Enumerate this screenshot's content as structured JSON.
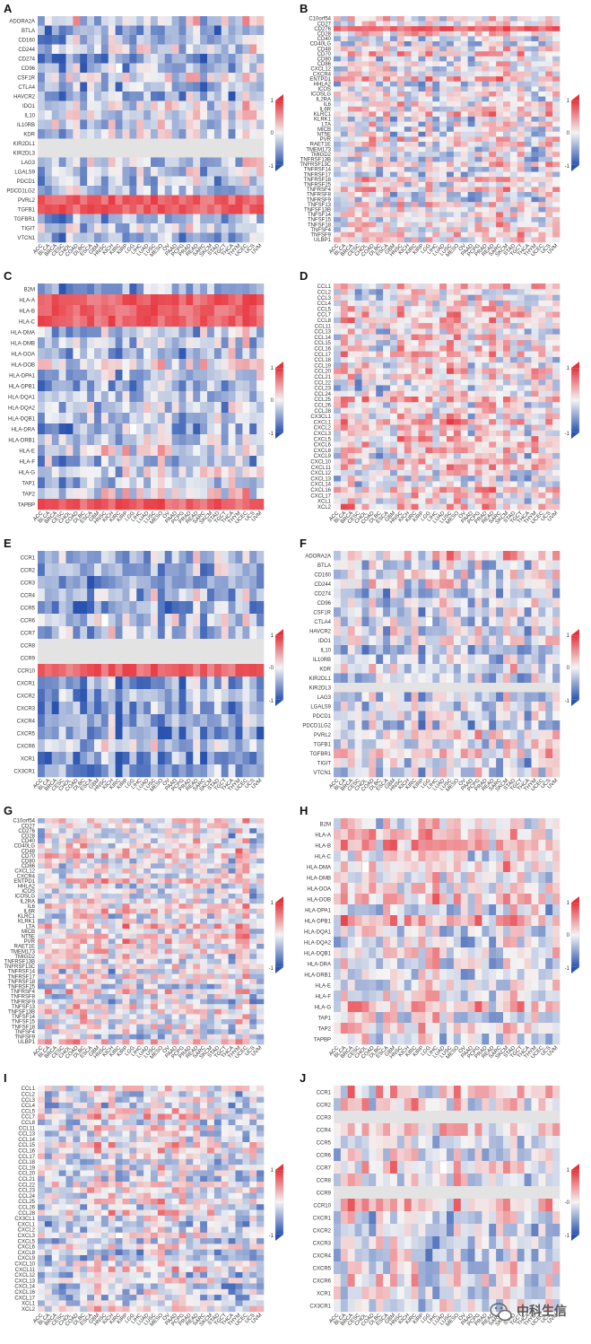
{
  "watermark": {
    "text": "中科生信",
    "icon": "wechat-icon"
  },
  "colorbar": {
    "max_label": "1",
    "mid_label": "0",
    "min_label": "-1",
    "alt_mid_label": "-0",
    "high_color": "#e8313a",
    "low_color": "#2a53b0",
    "mid_color": "#f4f4f4",
    "missing_color": "#e3e3e3"
  },
  "columns": [
    "ACC",
    "BLCA",
    "BRCA",
    "CESC",
    "CHOL",
    "COAD",
    "DLBC",
    "ESCA",
    "GBM",
    "HNSC",
    "KICH",
    "KIRC",
    "KIRP",
    "LGG",
    "LIHC",
    "LUAD",
    "LUSC",
    "MESO",
    "OV",
    "PAAD",
    "PCPG",
    "PRAD",
    "READ",
    "SARC",
    "SKCM",
    "STAD",
    "TGCT",
    "THCA",
    "THYM",
    "UCEC",
    "UCS",
    "UVM"
  ],
  "chart_data": [
    {
      "type": "heatmap",
      "panel": "A",
      "category": "immunoinhibitor",
      "ylim": [
        -1,
        1
      ],
      "colorbar_mid": "0",
      "rows": [
        "ADORA2A",
        "BTLA",
        "CD160",
        "CD244",
        "CD274",
        "CD96",
        "CSF1R",
        "CTLA4",
        "HAVCR2",
        "IDO1",
        "IL10",
        "IL10RB",
        "KDR",
        "KIR2DL1",
        "KIR2DL3",
        "LAG3",
        "LGALS9",
        "PDCD1",
        "PDCD1LG2",
        "PVRL2",
        "TGFB1",
        "TGFBR1",
        "TIGIT",
        "VTCN1"
      ],
      "strong_pos_rows": [
        "PVRL2",
        "TGFB1"
      ],
      "missing_rows": [
        "KIR2DL1",
        "KIR2DL3"
      ],
      "bias": -0.25,
      "seed": 11,
      "missing_cell": [
        5,
        11
      ]
    },
    {
      "type": "heatmap",
      "panel": "B",
      "category": "immunostimulator",
      "ylim": [
        -1,
        1
      ],
      "colorbar_mid": "0",
      "rows": [
        "C10orf54",
        "CD27",
        "CD276",
        "CD28",
        "CD40",
        "CD40LG",
        "CD48",
        "CD70",
        "CD80",
        "CD86",
        "CXCL12",
        "CXCR4",
        "ENTPD1",
        "HHLA2",
        "ICOS",
        "ICOSLG",
        "IL2RA",
        "IL6",
        "IL6R",
        "KLRC1",
        "KLRK1",
        "LTA",
        "MICB",
        "NT5E",
        "PVR",
        "RAET1E",
        "TMEM173",
        "TMIGD2",
        "TNFRSF13B",
        "TNFRSF13C",
        "TNFRSF14",
        "TNFRSF17",
        "TNFRSF18",
        "TNFRSF25",
        "TNFRSF4",
        "TNFRSF8",
        "TNFRSF9",
        "TNFSF13",
        "TNFSF13B",
        "TNFSF14",
        "TNFSF15",
        "TNFSF18",
        "TNFSF4",
        "TNFSF9",
        "ULBP1"
      ],
      "strong_pos_rows": [
        "CD276"
      ],
      "missing_rows": [],
      "bias": 0.05,
      "seed": 23,
      "missing_cell": null
    },
    {
      "type": "heatmap",
      "panel": "C",
      "category": "MHC",
      "ylim": [
        -1,
        1
      ],
      "colorbar_mid": "0",
      "rows": [
        "B2M",
        "HLA-A",
        "HLA-B",
        "HLA-C",
        "HLA-DMA",
        "HLA-DMB",
        "HLA-DOA",
        "HLA-DOB",
        "HLA-DPA1",
        "HLA-DPB1",
        "HLA-DQA1",
        "HLA-DQA2",
        "HLA-DQB1",
        "HLA-DRA",
        "HLA-DRB1",
        "HLA-E",
        "HLA-F",
        "HLA-G",
        "TAP1",
        "TAP2",
        "TAPBP"
      ],
      "strong_pos_rows": [
        "HLA-A",
        "HLA-B",
        "HLA-C",
        "TAPBP"
      ],
      "missing_rows": [],
      "bias": -0.2,
      "seed": 37,
      "missing_cell": [
        13,
        13
      ]
    },
    {
      "type": "heatmap",
      "panel": "D",
      "category": "chemokine",
      "ylim": [
        -1,
        1
      ],
      "colorbar_mid": "",
      "rows": [
        "CCL1",
        "CCL2",
        "CCL3",
        "CCL4",
        "CCL5",
        "CCL7",
        "CCL8",
        "CCL11",
        "CCL13",
        "CCL14",
        "CCL15",
        "CCL16",
        "CCL17",
        "CCL18",
        "CCL19",
        "CCL20",
        "CCL21",
        "CCL22",
        "CCL23",
        "CCL24",
        "CCL25",
        "CCL26",
        "CCL28",
        "CX3CL1",
        "CXCL1",
        "CXCL2",
        "CXCL3",
        "CXCL5",
        "CXCL6",
        "CXCL8",
        "CXCL9",
        "CXCL10",
        "CXCL11",
        "CXCL12",
        "CXCL13",
        "CXCL14",
        "CXCL16",
        "CXCL17",
        "XCL1",
        "XCL2"
      ],
      "strong_pos_rows": [],
      "missing_rows": [],
      "bias": 0.05,
      "seed": 41,
      "missing_cell": null
    },
    {
      "type": "heatmap",
      "panel": "E",
      "category": "receptor",
      "ylim": [
        -1,
        1
      ],
      "colorbar_mid": "-0",
      "rows": [
        "CCR1",
        "CCR2",
        "CCR3",
        "CCR4",
        "CCR5",
        "CCR6",
        "CCR7",
        "CCR8",
        "CCR9",
        "CCR10",
        "CXCR1",
        "CXCR2",
        "CXCR3",
        "CXCR4",
        "CXCR5",
        "CXCR6",
        "XCR1",
        "CX3CR1"
      ],
      "strong_pos_rows": [
        "CCR10"
      ],
      "missing_rows": [
        "CCR8",
        "CCR9"
      ],
      "bias": -0.3,
      "seed": 53,
      "missing_cell": [
        5,
        9
      ]
    },
    {
      "type": "heatmap",
      "panel": "F",
      "category": "immunoinhibitor",
      "ylim": [
        -1,
        1
      ],
      "colorbar_mid": "0",
      "rows": [
        "ADORA2A",
        "BTLA",
        "CD160",
        "CD244",
        "CD274",
        "CD96",
        "CSF1R",
        "CTLA4",
        "HAVCR2",
        "IDO1",
        "IL10",
        "IL10RB",
        "KDR",
        "KIR2DL1",
        "KIR2DL3",
        "LAG3",
        "LGALS9",
        "PDCD1",
        "PDCD1LG2",
        "PVRL2",
        "TGFB1",
        "TGFBR1",
        "TIGIT",
        "VTCN1"
      ],
      "strong_pos_rows": [],
      "missing_rows": [
        "KIR2DL3"
      ],
      "bias": 0.0,
      "seed": 67,
      "missing_cell": [
        7,
        13
      ]
    },
    {
      "type": "heatmap",
      "panel": "G",
      "category": "immunostimulator",
      "ylim": [
        -1,
        1
      ],
      "colorbar_mid": "",
      "rows": [
        "C10orf54",
        "CD27",
        "CD276",
        "CD28",
        "CD40",
        "CD40LG",
        "CD48",
        "CD70",
        "CD80",
        "CD86",
        "CXCL12",
        "CXCR4",
        "ENTPD1",
        "HHLA2",
        "ICOS",
        "ICOSLG",
        "IL2RA",
        "IL6",
        "IL6R",
        "KLRC1",
        "KLRK1",
        "LTA",
        "MICB",
        "NT5E",
        "PVR",
        "RAET1E",
        "TMEM173",
        "TMIGD2",
        "TNFRSF13B",
        "TNFRSF13C",
        "TNFRSF14",
        "TNFRSF17",
        "TNFRSF18",
        "TNFRSF25",
        "TNFRSF4",
        "TNFRSF8",
        "TNFRSF9",
        "TNFSF13",
        "TNFSF13B",
        "TNFSF14",
        "TNFSF15",
        "TNFSF18",
        "TNFSF4",
        "TNFSF9",
        "ULBP1"
      ],
      "strong_pos_rows": [],
      "missing_rows": [],
      "bias": 0.0,
      "seed": 71,
      "missing_cell": null
    },
    {
      "type": "heatmap",
      "panel": "H",
      "category": "MHC",
      "ylim": [
        -1,
        1
      ],
      "colorbar_mid": "0",
      "rows": [
        "B2M",
        "HLA-A",
        "HLA-B",
        "HLA-C",
        "HLA-DMA",
        "HLA-DMB",
        "HLA-DOA",
        "HLA-DOB",
        "HLA-DPA1",
        "HLA-DPB1",
        "HLA-DQA1",
        "HLA-DQA2",
        "HLA-DQB1",
        "HLA-DRA",
        "HLA-DRB1",
        "HLA-E",
        "HLA-F",
        "HLA-G",
        "TAP1",
        "TAP2",
        "TAPBP"
      ],
      "strong_pos_rows": [],
      "missing_rows": [],
      "bias": 0.1,
      "seed": 83,
      "missing_cell": [
        4,
        4
      ]
    },
    {
      "type": "heatmap",
      "panel": "I",
      "category": "chemokine",
      "ylim": [
        -1,
        1
      ],
      "colorbar_mid": "",
      "rows": [
        "CCL1",
        "CCL2",
        "CCL3",
        "CCL4",
        "CCL5",
        "CCL7",
        "CCL8",
        "CCL11",
        "CCL13",
        "CCL14",
        "CCL15",
        "CCL16",
        "CCL17",
        "CCL18",
        "CCL19",
        "CCL20",
        "CCL21",
        "CCL22",
        "CCL23",
        "CCL24",
        "CCL25",
        "CCL26",
        "CCL28",
        "CX3CL1",
        "CXCL1",
        "CXCL2",
        "CXCL3",
        "CXCL5",
        "CXCL6",
        "CXCL8",
        "CXCL9",
        "CXCL10",
        "CXCL11",
        "CXCL12",
        "CXCL13",
        "CXCL14",
        "CXCL16",
        "CXCL17",
        "XCL1",
        "XCL2"
      ],
      "strong_pos_rows": [],
      "missing_rows": [],
      "bias": 0.0,
      "seed": 97,
      "missing_cell": [
        26,
        11
      ]
    },
    {
      "type": "heatmap",
      "panel": "J",
      "category": "receptor",
      "ylim": [
        -1,
        1
      ],
      "colorbar_mid": "-0",
      "rows": [
        "CCR1",
        "CCR2",
        "CCR3",
        "CCR4",
        "CCR5",
        "CCR6",
        "CCR7",
        "CCR8",
        "CCR9",
        "CCR10",
        "CXCR1",
        "CXCR2",
        "CXCR3",
        "CXCR4",
        "CXCR5",
        "CXCR6",
        "XCR1",
        "CX3CR1"
      ],
      "strong_pos_rows": [],
      "missing_rows": [
        "CCR3",
        "CCR9"
      ],
      "bias": 0.05,
      "seed": 101,
      "missing_cell": [
        6,
        15
      ]
    }
  ]
}
